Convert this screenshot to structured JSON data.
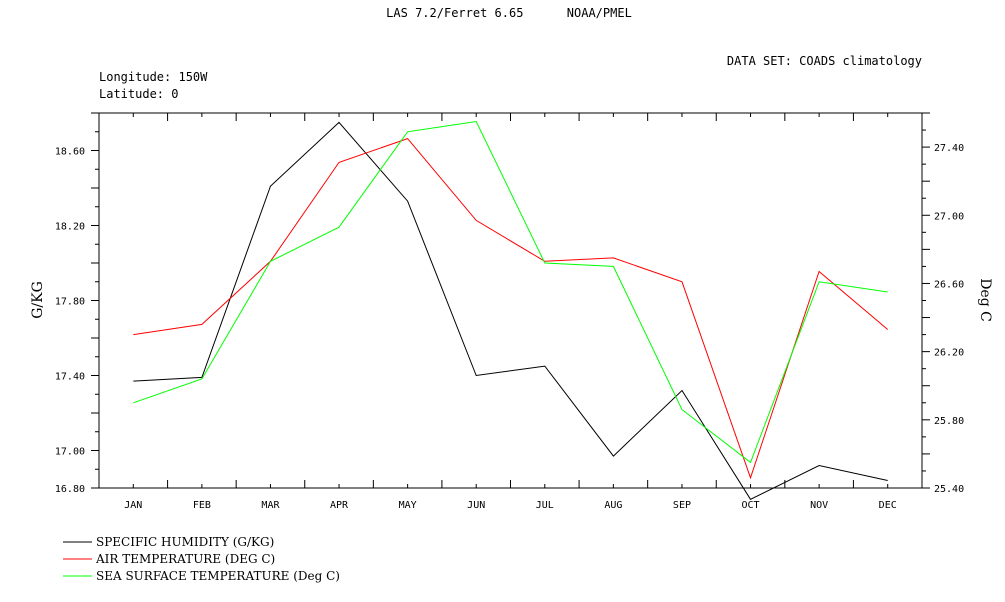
{
  "header": {
    "title": "LAS 7.2/Ferret 6.65      NOAA/PMEL",
    "dataset": "DATA SET: COADS climatology",
    "longitude": "Longitude: 150W",
    "latitude": "Latitude: 0"
  },
  "chart_data": {
    "type": "line",
    "categories": [
      "JAN",
      "FEB",
      "MAR",
      "APR",
      "MAY",
      "JUN",
      "JUL",
      "AUG",
      "SEP",
      "OCT",
      "NOV",
      "DEC"
    ],
    "left_axis": {
      "label": "G/KG",
      "ylim": [
        16.8,
        18.8
      ],
      "ticks": [
        "16.80",
        "17.00",
        "17.40",
        "17.80",
        "18.20",
        "18.60"
      ]
    },
    "right_axis": {
      "label": "Deg C",
      "ylim": [
        25.4,
        27.6
      ],
      "ticks": [
        "25.40",
        "25.80",
        "26.20",
        "26.60",
        "27.00",
        "27.40"
      ]
    },
    "series": [
      {
        "name": "SPECIFIC HUMIDITY (G/KG)",
        "axis": "left",
        "color": "#000000",
        "values": [
          17.37,
          17.39,
          18.41,
          18.75,
          18.33,
          17.4,
          17.45,
          16.97,
          17.32,
          16.74,
          16.92,
          16.84
        ]
      },
      {
        "name": "AIR TEMPERATURE (DEG C)",
        "axis": "right",
        "color": "#ff0000",
        "values": [
          26.3,
          26.36,
          26.73,
          27.31,
          27.45,
          26.97,
          26.73,
          26.75,
          26.61,
          25.46,
          26.67,
          26.33
        ]
      },
      {
        "name": "SEA SURFACE TEMPERATURE (Deg C)",
        "axis": "right",
        "color": "#00ff00",
        "values": [
          25.9,
          26.04,
          26.73,
          26.93,
          27.49,
          27.55,
          26.72,
          26.7,
          25.86,
          25.55,
          26.61,
          26.55
        ]
      }
    ],
    "grid": false,
    "legend_position": "bottom-left"
  }
}
